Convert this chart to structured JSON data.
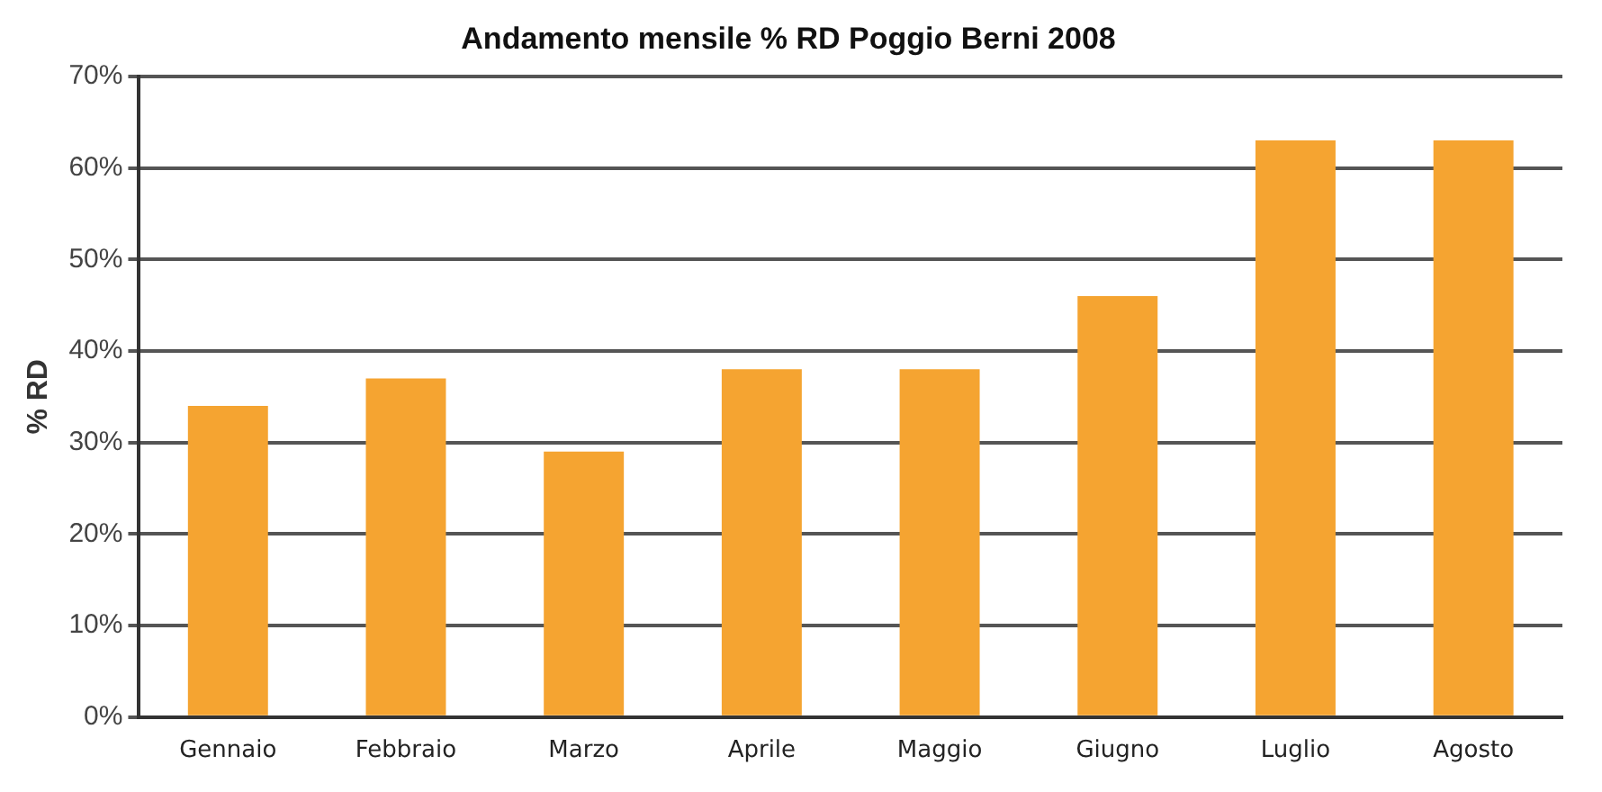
{
  "chart_data": {
    "type": "bar",
    "title": "Andamento mensile % RD Poggio Berni 2008",
    "ylabel": "% RD",
    "categories": [
      "Gennaio",
      "Febbraio",
      "Marzo",
      "Aprile",
      "Maggio",
      "Giugno",
      "Luglio",
      "Agosto"
    ],
    "values": [
      34,
      37,
      29,
      38,
      38,
      46,
      63,
      63
    ],
    "color": "#f5a431",
    "ylim": [
      0,
      70
    ],
    "yticks": [
      {
        "value": 0,
        "label": "0%"
      },
      {
        "value": 10,
        "label": "10%"
      },
      {
        "value": 20,
        "label": "20%"
      },
      {
        "value": 30,
        "label": "30%"
      },
      {
        "value": 40,
        "label": "40%"
      },
      {
        "value": 50,
        "label": "50%"
      },
      {
        "value": 60,
        "label": "60%"
      },
      {
        "value": 70,
        "label": "70%"
      }
    ],
    "grid": "y",
    "legend": false
  }
}
